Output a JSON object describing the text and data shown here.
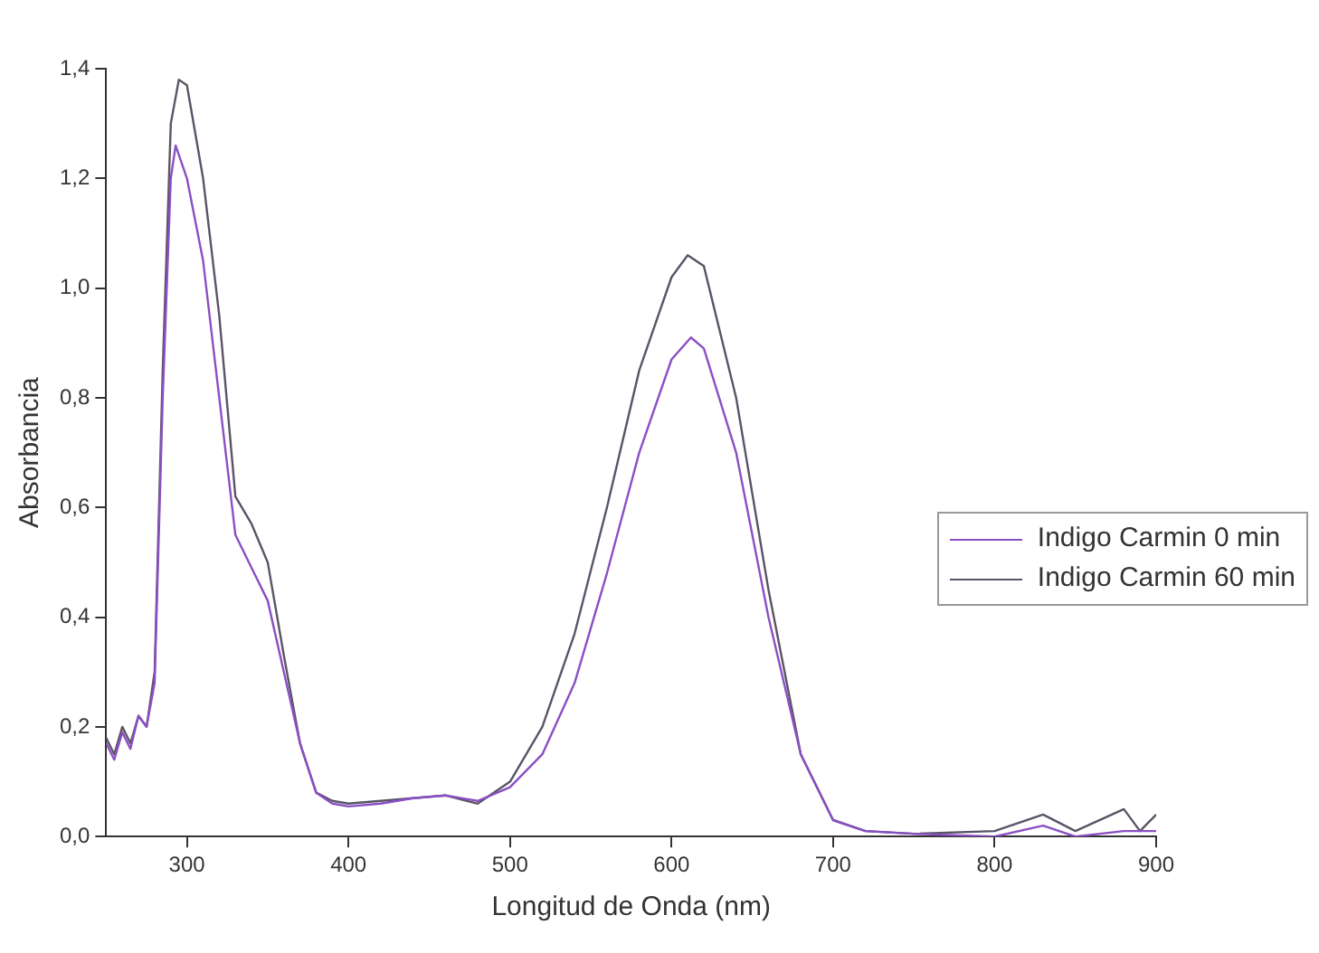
{
  "chart_data": {
    "type": "line",
    "xlabel": "Longitud de Onda (nm)",
    "ylabel": "Absorbancia",
    "xlim": [
      250,
      900
    ],
    "xticks": [
      300,
      400,
      500,
      600,
      700,
      800,
      900
    ],
    "ylim": [
      0,
      1.4
    ],
    "yticks": [
      {
        "value": 0,
        "label": "0,0"
      },
      {
        "value": 0.2,
        "label": "0,2"
      },
      {
        "value": 0.4,
        "label": "0,4"
      },
      {
        "value": 0.6,
        "label": "0,6"
      },
      {
        "value": 0.8,
        "label": "0,8"
      },
      {
        "value": 1.0,
        "label": "1,0"
      },
      {
        "value": 1.2,
        "label": "1,2"
      },
      {
        "value": 1.4,
        "label": "1,4"
      }
    ],
    "grid": false,
    "legend": "right",
    "marker": "none",
    "line_style": "solid",
    "series": [
      {
        "name": "Indigo Carmin 0 min",
        "color": "#8a4fc4",
        "x": [
          250,
          255,
          260,
          265,
          270,
          275,
          280,
          285,
          290,
          293,
          300,
          310,
          320,
          330,
          340,
          350,
          360,
          370,
          380,
          390,
          400,
          420,
          440,
          460,
          480,
          500,
          520,
          540,
          560,
          580,
          600,
          612,
          620,
          640,
          660,
          680,
          700,
          720,
          750,
          800,
          830,
          850,
          880,
          900
        ],
        "values": [
          0.17,
          0.14,
          0.19,
          0.16,
          0.22,
          0.2,
          0.28,
          0.8,
          1.2,
          1.26,
          1.2,
          1.05,
          0.8,
          0.55,
          0.49,
          0.43,
          0.3,
          0.17,
          0.08,
          0.06,
          0.055,
          0.06,
          0.07,
          0.075,
          0.065,
          0.09,
          0.15,
          0.28,
          0.48,
          0.7,
          0.87,
          0.91,
          0.89,
          0.7,
          0.4,
          0.15,
          0.03,
          0.01,
          0.005,
          0,
          0.02,
          0,
          0.01,
          0.01
        ]
      },
      {
        "name": "Indigo Carmin 60 min",
        "color": "#5a5466",
        "x": [
          250,
          255,
          260,
          265,
          270,
          275,
          280,
          285,
          290,
          295,
          300,
          310,
          320,
          330,
          340,
          350,
          360,
          370,
          380,
          390,
          400,
          420,
          440,
          460,
          480,
          500,
          520,
          540,
          560,
          580,
          600,
          610,
          620,
          640,
          660,
          680,
          700,
          720,
          750,
          800,
          830,
          850,
          880,
          890,
          900
        ],
        "values": [
          0.18,
          0.15,
          0.2,
          0.17,
          0.22,
          0.2,
          0.3,
          0.85,
          1.3,
          1.38,
          1.37,
          1.2,
          0.95,
          0.62,
          0.57,
          0.5,
          0.33,
          0.17,
          0.08,
          0.065,
          0.06,
          0.065,
          0.07,
          0.075,
          0.06,
          0.1,
          0.2,
          0.37,
          0.6,
          0.85,
          1.02,
          1.06,
          1.04,
          0.8,
          0.45,
          0.15,
          0.03,
          0.01,
          0.005,
          0.01,
          0.04,
          0.01,
          0.05,
          0.01,
          0.04
        ]
      }
    ]
  }
}
